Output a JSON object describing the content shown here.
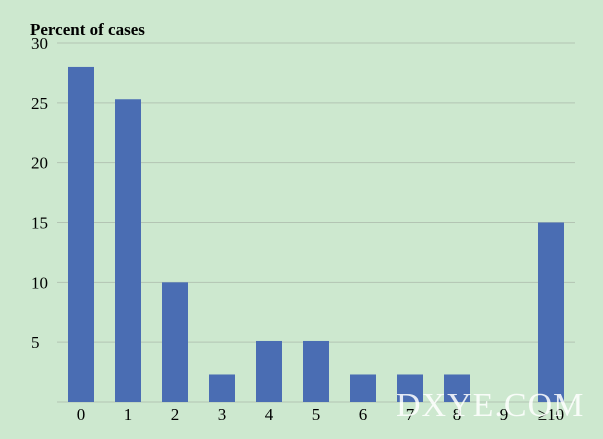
{
  "chart_data": {
    "type": "bar",
    "title": "",
    "xlabel": "",
    "ylabel": "Percent of cases",
    "categories": [
      "0",
      "1",
      "2",
      "3",
      "4",
      "5",
      "6",
      "7",
      "8",
      "9",
      "≥10"
    ],
    "values": [
      28,
      25.3,
      10,
      2.3,
      5.1,
      5.1,
      2.3,
      2.3,
      2.3,
      0,
      15
    ],
    "ylim": [
      0,
      30
    ],
    "yticks": [
      5,
      10,
      15,
      20,
      25,
      30
    ],
    "grid": true,
    "legend": "none",
    "bar_color": "#4a6db3",
    "grid_color": "#b3c4b3",
    "background_color": "#cde8cf"
  },
  "watermark": {
    "text": "DXYE.COM"
  }
}
